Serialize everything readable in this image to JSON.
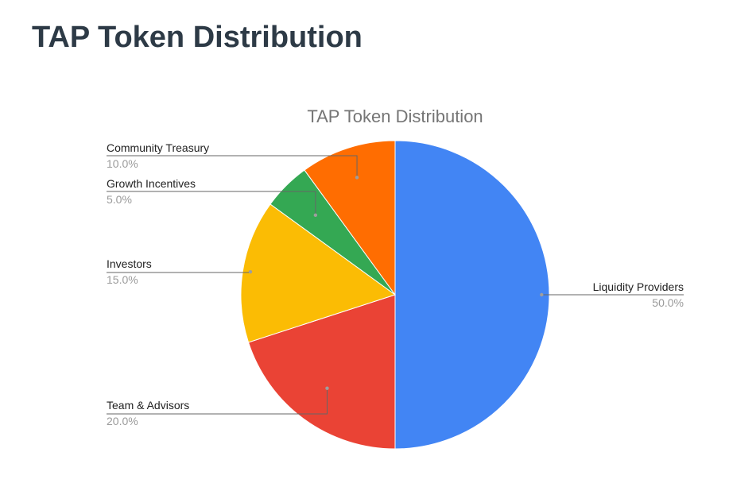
{
  "page": {
    "heading": "TAP Token Distribution"
  },
  "chart_data": {
    "type": "pie",
    "title": "TAP Token Distribution",
    "slices": [
      {
        "label": "Liquidity Providers",
        "value": 50.0,
        "percent_label": "50.0%",
        "color": "#4285f4"
      },
      {
        "label": "Team & Advisors",
        "value": 20.0,
        "percent_label": "20.0%",
        "color": "#ea4335"
      },
      {
        "label": "Investors",
        "value": 15.0,
        "percent_label": "15.0%",
        "color": "#fbbc04"
      },
      {
        "label": "Growth Incentives",
        "value": 5.0,
        "percent_label": "5.0%",
        "color": "#34a853"
      },
      {
        "label": "Community Treasury",
        "value": 10.0,
        "percent_label": "10.0%",
        "color": "#ff6d01"
      }
    ],
    "start_angle_deg": 0,
    "direction": "clockwise",
    "legend": "none"
  }
}
